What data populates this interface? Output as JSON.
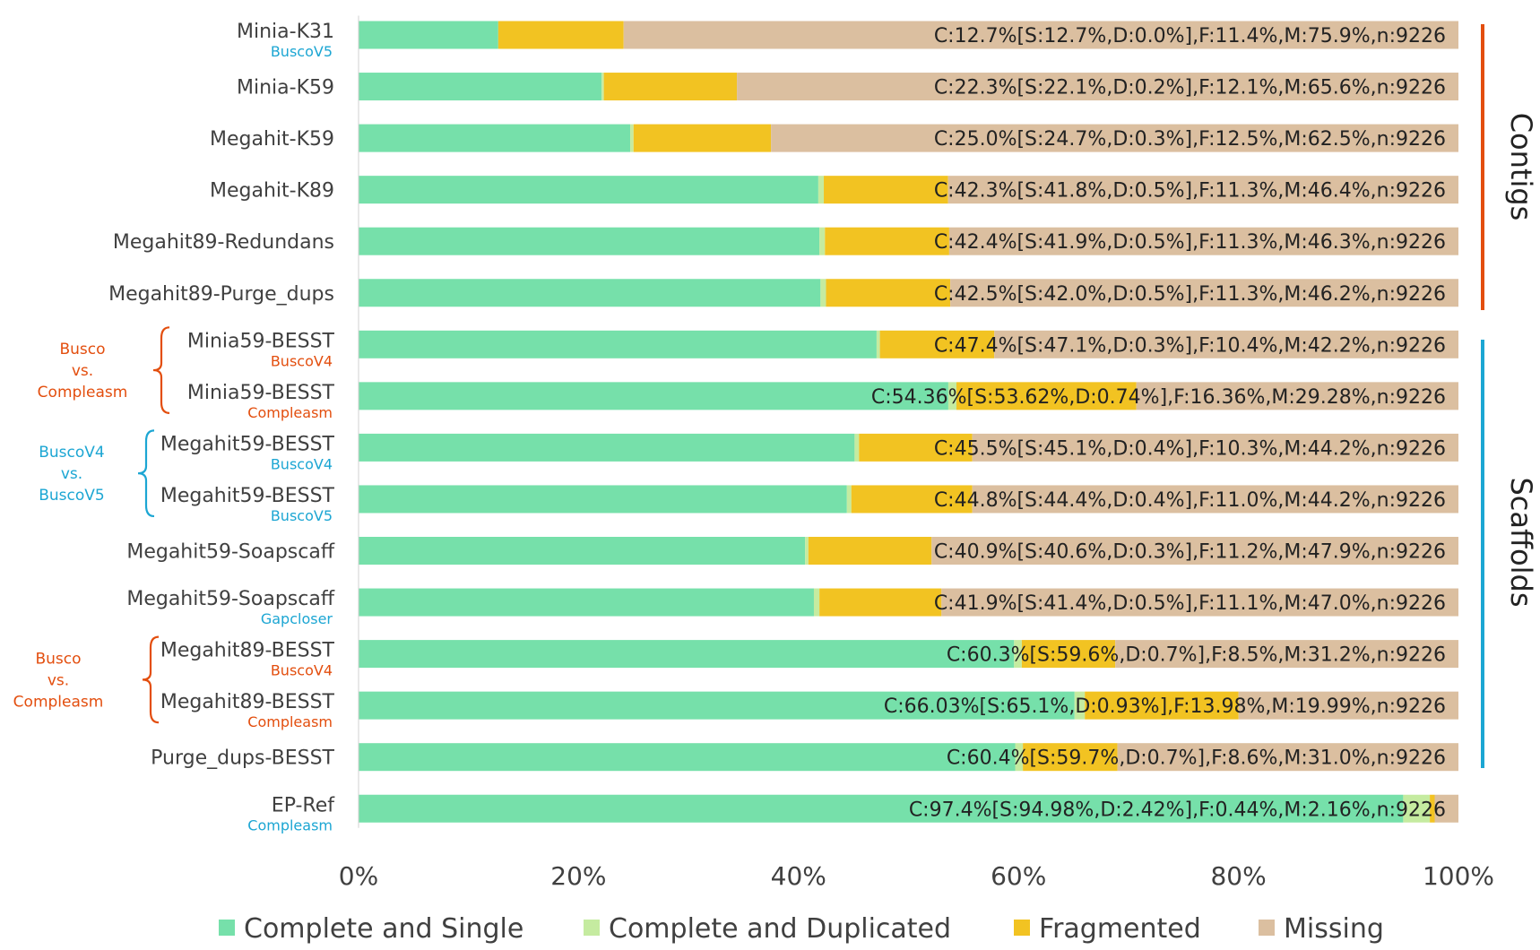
{
  "chart_data": {
    "type": "bar",
    "orientation": "horizontal",
    "stacked": "percent",
    "title": "",
    "xlabel": "",
    "ylabel": "",
    "xlim": [
      0,
      100
    ],
    "x_ticks": [
      "0%",
      "20%",
      "40%",
      "60%",
      "80%",
      "100%"
    ],
    "grid": false,
    "legend_position": "bottom",
    "colors": {
      "Complete and Single": "#76e0aa",
      "Complete and Duplicated": "#c5eba0",
      "Fragmented": "#f2c322",
      "Missing": "#dbbfa0",
      "accent_red": "#e34e0e",
      "accent_blue": "#1ca6d3"
    },
    "legend": [
      "Complete and Single",
      "Complete and Duplicated",
      "Fragmented",
      "Missing"
    ],
    "categories": [
      {
        "label": "Minia-K31",
        "sublabel": "BuscoV5",
        "sublabel_color": "#1ca6d3",
        "summary": "C:12.7%[S:12.7%,D:0.0%],F:11.4%,M:75.9%,n:9226"
      },
      {
        "label": "Minia-K59",
        "sublabel": "",
        "sublabel_color": "",
        "summary": "C:22.3%[S:22.1%,D:0.2%],F:12.1%,M:65.6%,n:9226"
      },
      {
        "label": "Megahit-K59",
        "sublabel": "",
        "sublabel_color": "",
        "summary": "C:25.0%[S:24.7%,D:0.3%],F:12.5%,M:62.5%,n:9226"
      },
      {
        "label": "Megahit-K89",
        "sublabel": "",
        "sublabel_color": "",
        "summary": "C:42.3%[S:41.8%,D:0.5%],F:11.3%,M:46.4%,n:9226"
      },
      {
        "label": "Megahit89-Redundans",
        "sublabel": "",
        "sublabel_color": "",
        "summary": "C:42.4%[S:41.9%,D:0.5%],F:11.3%,M:46.3%,n:9226"
      },
      {
        "label": "Megahit89-Purge_dups",
        "sublabel": "",
        "sublabel_color": "",
        "summary": "C:42.5%[S:42.0%,D:0.5%],F:11.3%,M:46.2%,n:9226"
      },
      {
        "label": "Minia59-BESST",
        "sublabel": "BuscoV4",
        "sublabel_color": "#e34e0e",
        "summary": "C:47.4%[S:47.1%,D:0.3%],F:10.4%,M:42.2%,n:9226"
      },
      {
        "label": "Minia59-BESST",
        "sublabel": "Compleasm",
        "sublabel_color": "#e34e0e",
        "summary": "C:54.36%[S:53.62%,D:0.74%],F:16.36%,M:29.28%,n:9226"
      },
      {
        "label": "Megahit59-BESST",
        "sublabel": "BuscoV4",
        "sublabel_color": "#1ca6d3",
        "summary": "C:45.5%[S:45.1%,D:0.4%],F:10.3%,M:44.2%,n:9226"
      },
      {
        "label": "Megahit59-BESST",
        "sublabel": "BuscoV5",
        "sublabel_color": "#1ca6d3",
        "summary": "C:44.8%[S:44.4%,D:0.4%],F:11.0%,M:44.2%,n:9226"
      },
      {
        "label": "Megahit59-Soapscaff",
        "sublabel": "",
        "sublabel_color": "",
        "summary": "C:40.9%[S:40.6%,D:0.3%],F:11.2%,M:47.9%,n:9226"
      },
      {
        "label": "Megahit59-Soapscaff",
        "sublabel": "Gapcloser",
        "sublabel_color": "#1ca6d3",
        "summary": "C:41.9%[S:41.4%,D:0.5%],F:11.1%,M:47.0%,n:9226"
      },
      {
        "label": "Megahit89-BESST",
        "sublabel": "BuscoV4",
        "sublabel_color": "#e34e0e",
        "summary": "C:60.3%[S:59.6%,D:0.7%],F:8.5%,M:31.2%,n:9226"
      },
      {
        "label": "Megahit89-BESST",
        "sublabel": "Compleasm",
        "sublabel_color": "#e34e0e",
        "summary": "C:66.03%[S:65.1%,D:0.93%],F:13.98%,M:19.99%,n:9226"
      },
      {
        "label": "Purge_dups-BESST",
        "sublabel": "",
        "sublabel_color": "",
        "summary": "C:60.4%[S:59.7%,D:0.7%],F:8.6%,M:31.0%,n:9226"
      },
      {
        "label": "EP-Ref",
        "sublabel": "Compleasm",
        "sublabel_color": "#1ca6d3",
        "summary": "C:97.4%[S:94.98%,D:2.42%],F:0.44%,M:2.16%,n:9226"
      }
    ],
    "series": [
      {
        "name": "Complete and Single",
        "values": [
          12.7,
          22.1,
          24.7,
          41.8,
          41.9,
          42.0,
          47.1,
          53.62,
          45.1,
          44.4,
          40.6,
          41.4,
          59.6,
          65.1,
          59.7,
          94.98
        ]
      },
      {
        "name": "Complete and Duplicated",
        "values": [
          0.0,
          0.2,
          0.3,
          0.5,
          0.5,
          0.5,
          0.3,
          0.74,
          0.4,
          0.4,
          0.3,
          0.5,
          0.7,
          0.93,
          0.7,
          2.42
        ]
      },
      {
        "name": "Fragmented",
        "values": [
          11.4,
          12.1,
          12.5,
          11.3,
          11.3,
          11.3,
          10.4,
          16.36,
          10.3,
          11.0,
          11.2,
          11.1,
          8.5,
          13.98,
          8.6,
          0.44
        ]
      },
      {
        "name": "Missing",
        "values": [
          75.9,
          65.6,
          62.5,
          46.4,
          46.3,
          46.2,
          42.2,
          29.28,
          44.2,
          44.2,
          47.9,
          47.0,
          31.2,
          19.99,
          31.0,
          2.16
        ]
      }
    ],
    "groups": [
      {
        "label": "Contigs",
        "from": 0,
        "to": 5,
        "color": "#e34e0e"
      },
      {
        "label": "Scaffolds",
        "from": 6,
        "to": 15,
        "color": "#1ca6d3"
      }
    ],
    "annotations": [
      {
        "lines": [
          "Busco",
          "vs.",
          "Compleasm"
        ],
        "rows": [
          6,
          7
        ],
        "color": "#e34e0e"
      },
      {
        "lines": [
          "BuscoV4",
          "vs.",
          "BuscoV5"
        ],
        "rows": [
          8,
          9
        ],
        "color": "#1ca6d3"
      },
      {
        "lines": [
          "Busco",
          "vs.",
          "Compleasm"
        ],
        "rows": [
          12,
          13
        ],
        "color": "#e34e0e"
      }
    ]
  }
}
